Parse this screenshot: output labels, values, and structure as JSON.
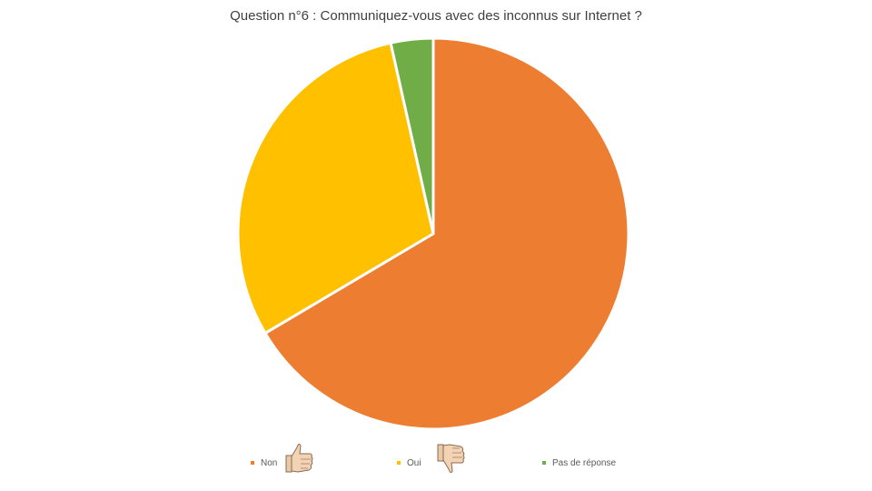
{
  "chart_data": {
    "type": "pie",
    "title": "Question n°6 : Communiquez-vous avec des inconnus sur Internet ?",
    "series": [
      {
        "name": "Non",
        "value": 66.5,
        "color": "#ED7D31"
      },
      {
        "name": "Oui",
        "value": 30.0,
        "color": "#FFC000"
      },
      {
        "name": "Pas de réponse",
        "value": 3.5,
        "color": "#70AD47"
      }
    ],
    "start_angle_deg": 0,
    "direction": "clockwise",
    "legend_position": "bottom"
  },
  "legend_icons": {
    "non": "thumbs-up-icon",
    "oui": "thumbs-down-icon"
  }
}
